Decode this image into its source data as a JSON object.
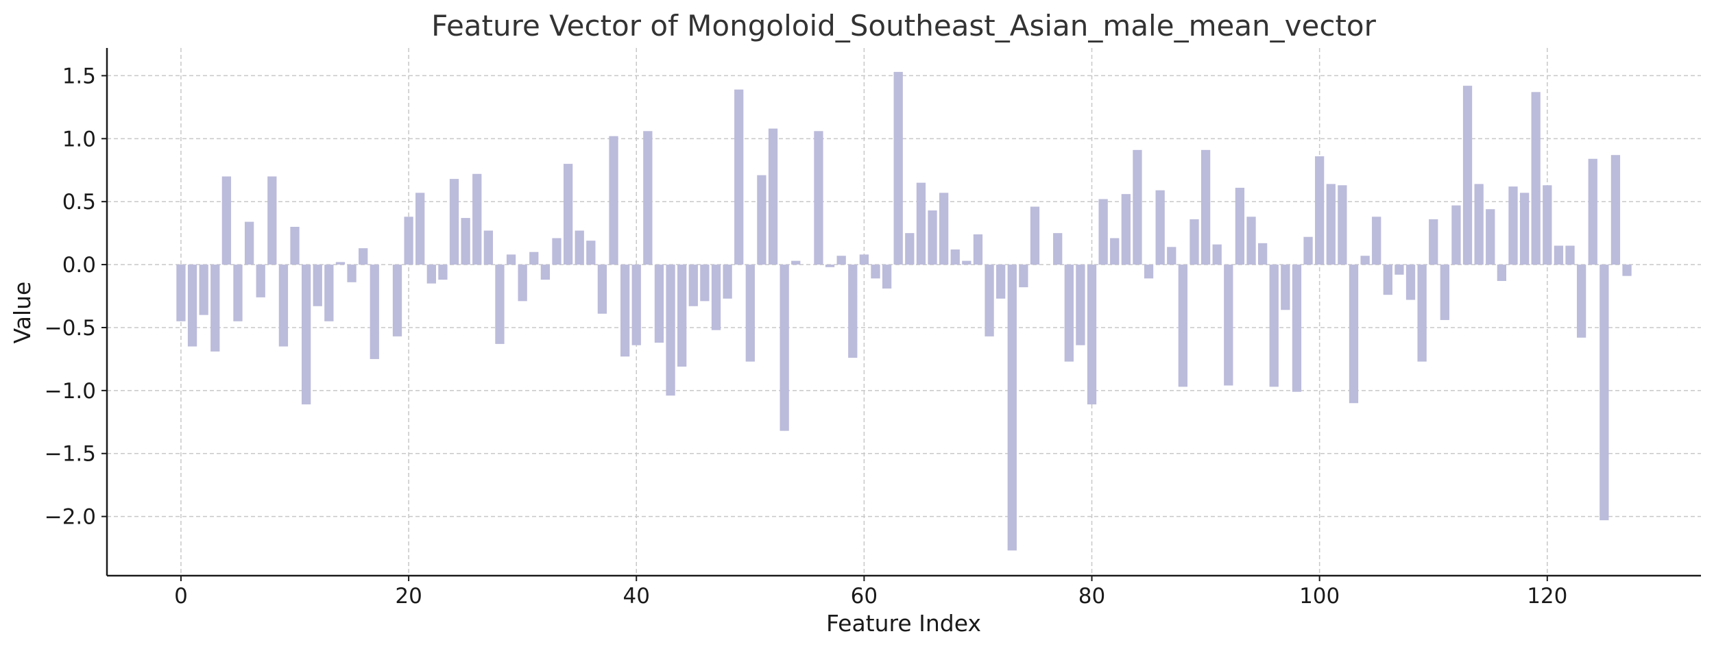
{
  "chart_data": {
    "type": "bar",
    "title": "Feature Vector of Mongoloid_Southeast_Asian_male_mean_vector",
    "xlabel": "Feature Index",
    "ylabel": "Value",
    "xlim": [
      -6.5,
      133.5
    ],
    "ylim": [
      -2.47,
      1.72
    ],
    "xticks": [
      0,
      20,
      40,
      60,
      80,
      100,
      120
    ],
    "yticks": [
      1.5,
      1.0,
      0.5,
      0.0,
      -0.5,
      -1.0,
      -1.5,
      -2.0
    ],
    "xtick_labels": [
      "0",
      "20",
      "40",
      "60",
      "80",
      "100",
      "120"
    ],
    "ytick_labels": [
      "1.5",
      "1.0",
      "0.5",
      "0.0",
      "−0.5",
      "−1.0",
      "−1.5",
      "−2.0"
    ],
    "grid": true,
    "bar_color": "#bbbbdb",
    "categories": [
      0,
      1,
      2,
      3,
      4,
      5,
      6,
      7,
      8,
      9,
      10,
      11,
      12,
      13,
      14,
      15,
      16,
      17,
      18,
      19,
      20,
      21,
      22,
      23,
      24,
      25,
      26,
      27,
      28,
      29,
      30,
      31,
      32,
      33,
      34,
      35,
      36,
      37,
      38,
      39,
      40,
      41,
      42,
      43,
      44,
      45,
      46,
      47,
      48,
      49,
      50,
      51,
      52,
      53,
      54,
      55,
      56,
      57,
      58,
      59,
      60,
      61,
      62,
      63,
      64,
      65,
      66,
      67,
      68,
      69,
      70,
      71,
      72,
      73,
      74,
      75,
      76,
      77,
      78,
      79,
      80,
      81,
      82,
      83,
      84,
      85,
      86,
      87,
      88,
      89,
      90,
      91,
      92,
      93,
      94,
      95,
      96,
      97,
      98,
      99,
      100,
      101,
      102,
      103,
      104,
      105,
      106,
      107,
      108,
      109,
      110,
      111,
      112,
      113,
      114,
      115,
      116,
      117,
      118,
      119,
      120,
      121,
      122,
      123,
      124,
      125,
      126,
      127
    ],
    "values": [
      -0.45,
      -0.65,
      -0.4,
      -0.69,
      0.7,
      -0.45,
      0.34,
      -0.26,
      0.7,
      -0.65,
      0.3,
      -1.11,
      -0.33,
      -0.45,
      0.02,
      -0.14,
      0.13,
      -0.75,
      0.0,
      -0.57,
      0.38,
      0.57,
      -0.15,
      -0.12,
      0.68,
      0.37,
      0.72,
      0.27,
      -0.63,
      0.08,
      -0.29,
      0.1,
      -0.12,
      0.21,
      0.8,
      0.27,
      0.19,
      -0.39,
      1.02,
      -0.73,
      -0.64,
      1.06,
      -0.62,
      -1.04,
      -0.81,
      -0.33,
      -0.29,
      -0.52,
      -0.27,
      1.39,
      -0.77,
      0.71,
      1.08,
      -1.32,
      0.03,
      0.0,
      1.06,
      -0.02,
      0.07,
      -0.74,
      0.08,
      -0.11,
      -0.19,
      1.53,
      0.25,
      0.65,
      0.43,
      0.57,
      0.12,
      0.03,
      0.24,
      -0.57,
      -0.27,
      -2.27,
      -0.18,
      0.46,
      0.0,
      0.25,
      -0.77,
      -0.64,
      -1.11,
      0.52,
      0.21,
      0.56,
      0.91,
      -0.11,
      0.59,
      0.14,
      -0.97,
      0.36,
      0.91,
      0.16,
      -0.96,
      0.61,
      0.38,
      0.17,
      -0.97,
      -0.36,
      -1.01,
      0.22,
      0.86,
      0.64,
      0.63,
      -1.1,
      0.07,
      0.38,
      -0.24,
      -0.08,
      -0.28,
      -0.77,
      0.36,
      -0.44,
      0.47,
      1.42,
      0.64,
      0.44,
      -0.13,
      0.62,
      0.57,
      1.37,
      0.63,
      0.15,
      0.15,
      -0.58,
      0.84,
      -2.03,
      0.87,
      -0.09
    ]
  }
}
